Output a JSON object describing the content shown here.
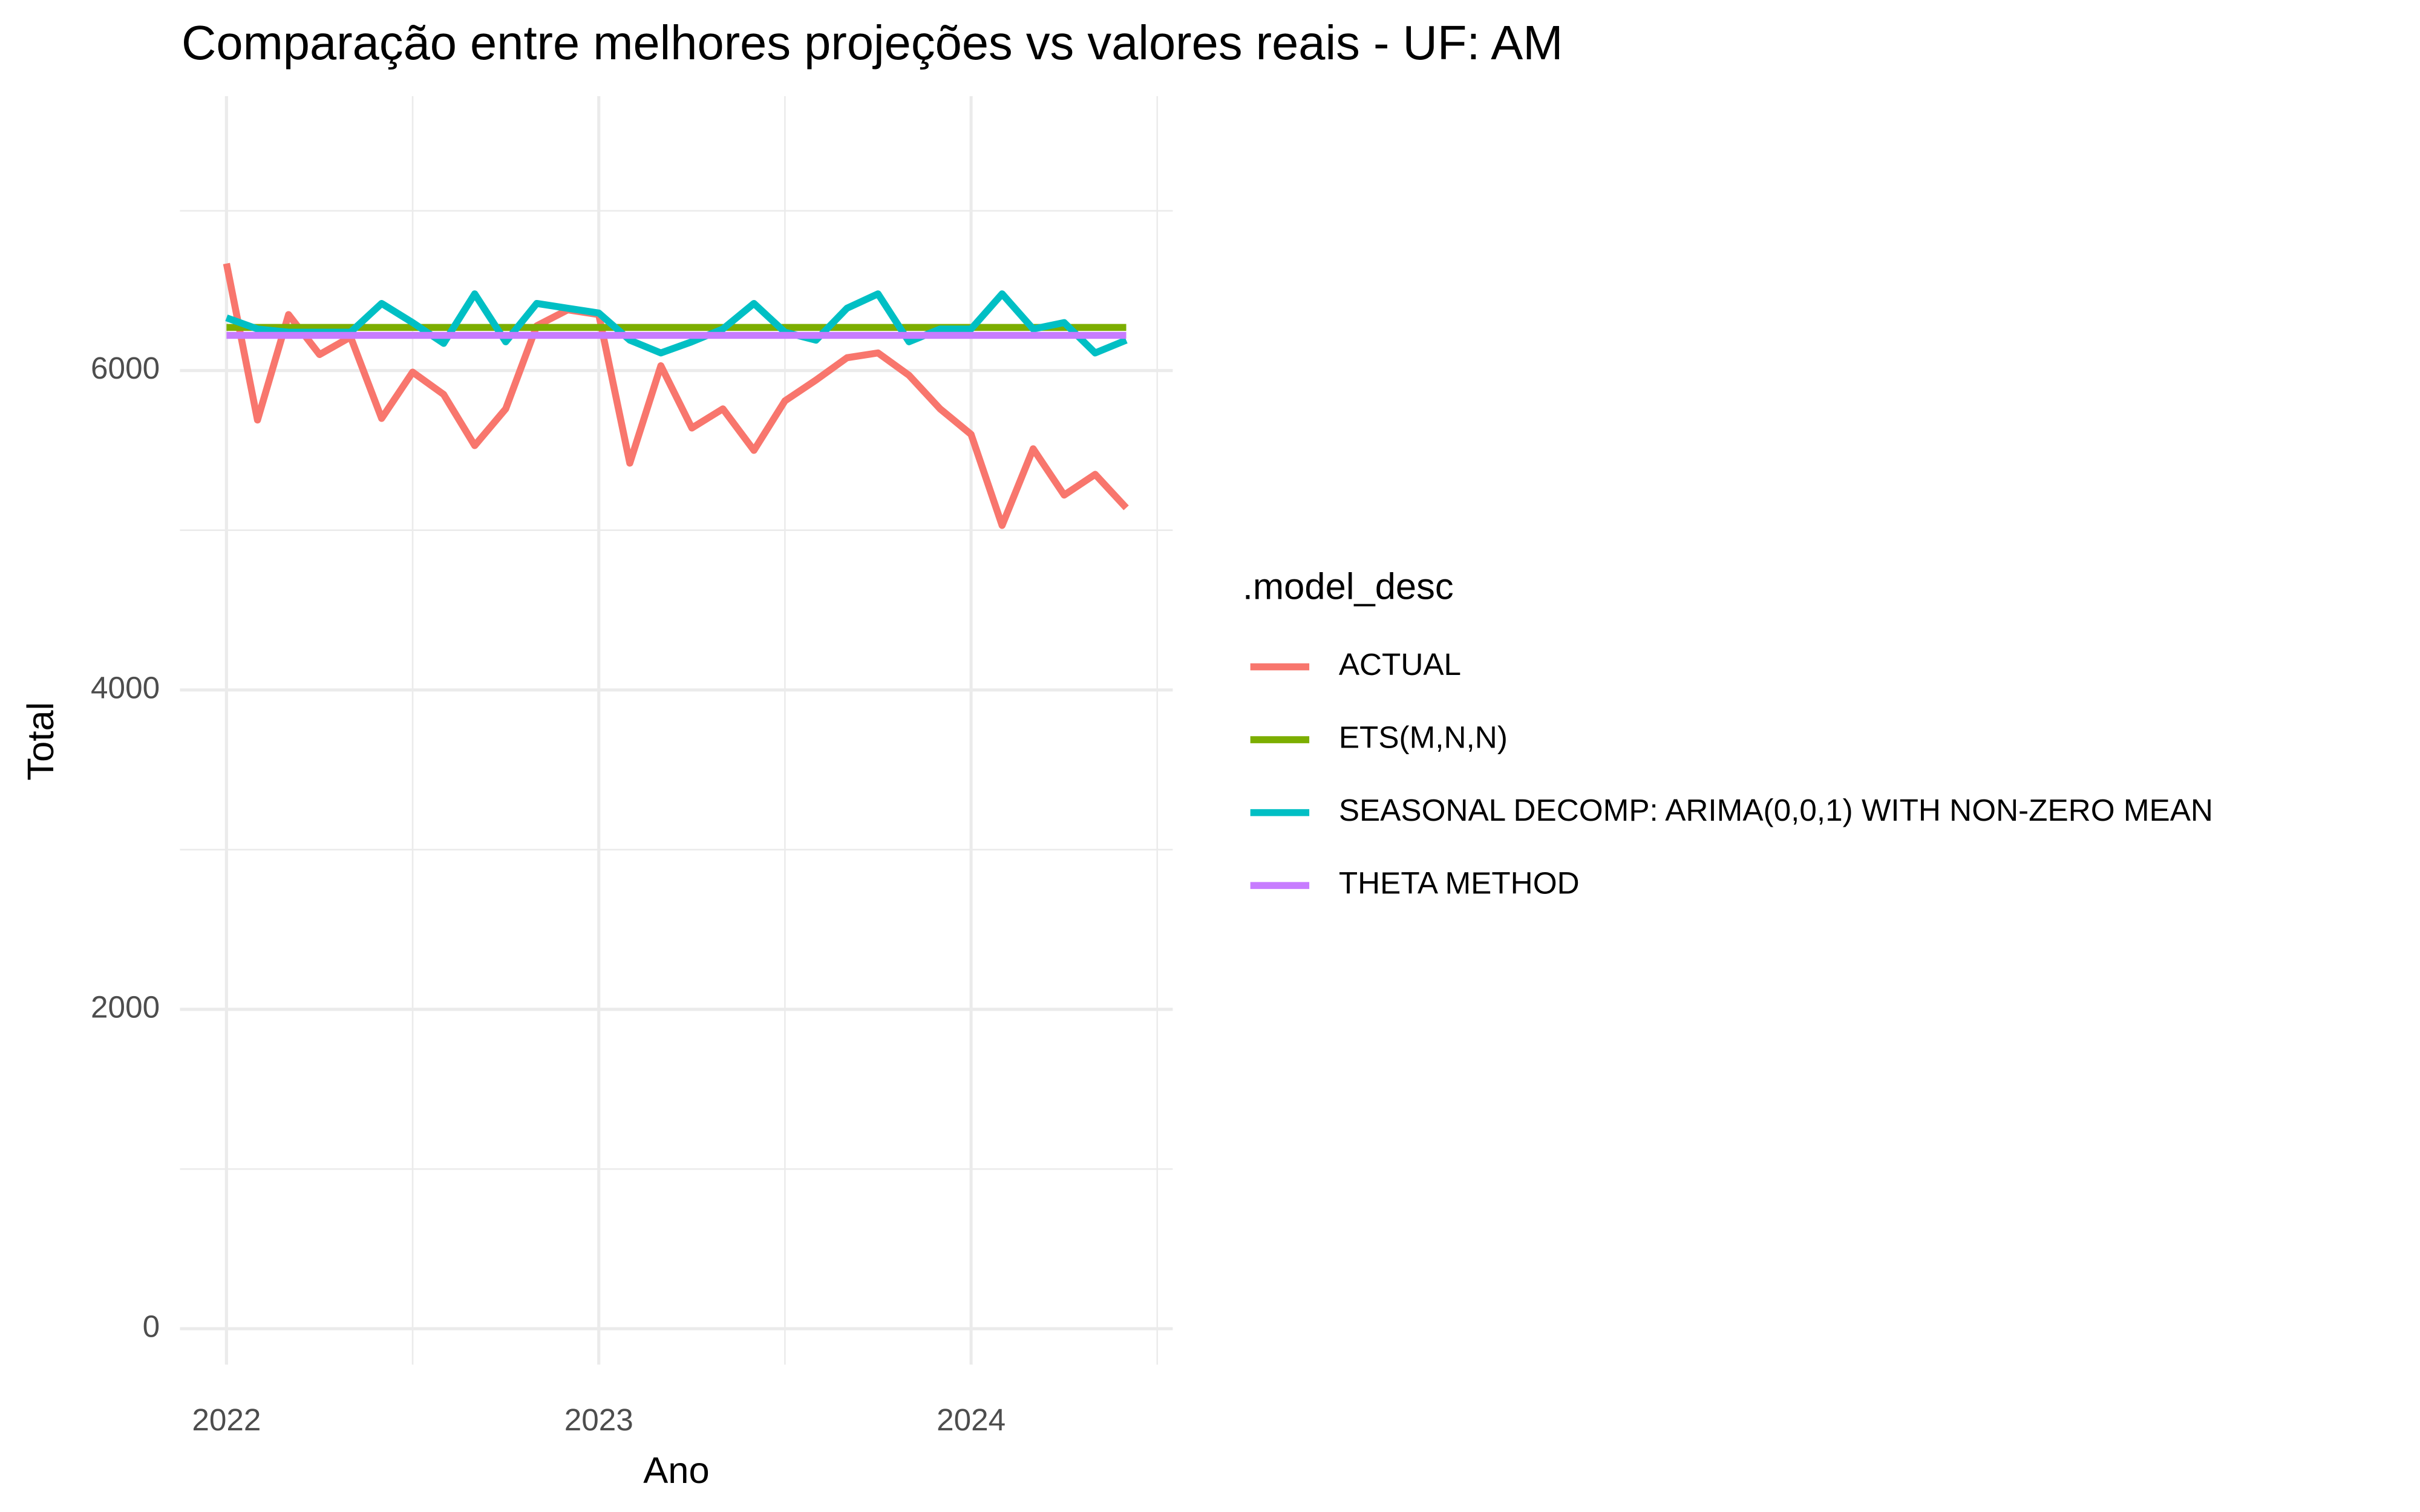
{
  "chart_data": {
    "type": "line",
    "title": "Comparação entre melhores projeções vs valores reais - UF: AM",
    "x_label": "Ano",
    "y_label": "Total",
    "legend_title": ".model_desc",
    "legend": "right",
    "grid": true,
    "x": [
      2022,
      2022.0833,
      2022.1667,
      2022.25,
      2022.3333,
      2022.4167,
      2022.5,
      2022.5833,
      2022.6667,
      2022.75,
      2022.8333,
      2022.9167,
      2023,
      2023.0833,
      2023.1667,
      2023.25,
      2023.3333,
      2023.4167,
      2023.5,
      2023.5833,
      2023.6667,
      2023.75,
      2023.8333,
      2023.9167,
      2024,
      2024.0833,
      2024.1667,
      2024.25,
      2024.3333,
      2024.4167
    ],
    "xlim": [
      2021.875,
      2024.5417
    ],
    "xticks": [
      2022,
      2023,
      2024
    ],
    "ylim": [
      -225,
      7718
    ],
    "yticks": [
      0,
      2000,
      4000,
      6000
    ],
    "series": [
      {
        "name": "ACTUAL",
        "color": "#F8766D",
        "values": [
          6670,
          5690,
          6350,
          6100,
          6210,
          5700,
          5990,
          5850,
          5530,
          5760,
          6280,
          6380,
          6350,
          5420,
          6030,
          5640,
          5760,
          5500,
          5810,
          5940,
          6080,
          6110,
          5970,
          5760,
          5600,
          5030,
          5510,
          5220,
          5350,
          5140
        ]
      },
      {
        "name": "ETS(M,N,N)",
        "color": "#7CAE00",
        "values": [
          6270,
          6270,
          6270,
          6270,
          6270,
          6270,
          6270,
          6270,
          6270,
          6270,
          6270,
          6270,
          6270,
          6270,
          6270,
          6270,
          6270,
          6270,
          6270,
          6270,
          6270,
          6270,
          6270,
          6270,
          6270,
          6270,
          6270,
          6270,
          6270,
          6270
        ]
      },
      {
        "name": "SEASONAL DECOMP: ARIMA(0,0,1) WITH NON-ZERO MEAN",
        "color": "#00BFC4",
        "values": [
          6330,
          6260,
          6240,
          6240,
          6240,
          6420,
          6300,
          6170,
          6480,
          6180,
          6420,
          6390,
          6360,
          6190,
          6110,
          6180,
          6260,
          6420,
          6240,
          6190,
          6390,
          6480,
          6180,
          6260,
          6260,
          6480,
          6260,
          6300,
          6110,
          6190
        ]
      },
      {
        "name": "THETA METHOD",
        "color": "#C77CFF",
        "values": [
          6220,
          6220,
          6220,
          6220,
          6220,
          6220,
          6220,
          6220,
          6220,
          6220,
          6220,
          6220,
          6220,
          6220,
          6220,
          6220,
          6220,
          6220,
          6220,
          6220,
          6220,
          6220,
          6220,
          6220,
          6220,
          6220,
          6220,
          6220,
          6220,
          6220
        ]
      }
    ]
  }
}
